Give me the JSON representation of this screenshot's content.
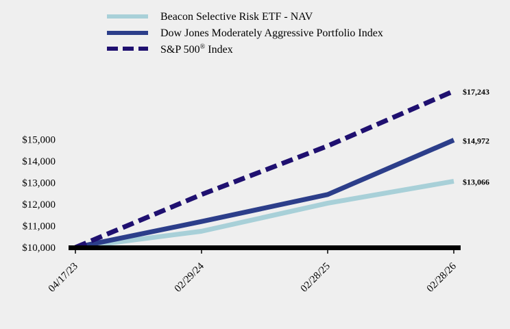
{
  "chart_data": {
    "type": "line",
    "title": "",
    "xlabel": "",
    "ylabel": "",
    "x": [
      "04/17/23",
      "02/29/24",
      "02/28/25",
      "02/28/26"
    ],
    "ylim": [
      10000,
      15000
    ],
    "yticks": [
      10000,
      11000,
      12000,
      13000,
      14000,
      15000
    ],
    "ytick_labels": [
      "$10,000",
      "$11,000",
      "$12,000",
      "$13,000",
      "$14,000",
      "$15,000"
    ],
    "legend_position": "top",
    "series": [
      {
        "name": "Beacon Selective Risk ETF - NAV",
        "values": [
          10000,
          10750,
          12050,
          13066
        ],
        "color": "#a8d0d8",
        "style": "solid",
        "end_label": "$13,066"
      },
      {
        "name": "Dow Jones Moderately Aggressive Portfolio Index",
        "values": [
          10000,
          11200,
          12450,
          14972
        ],
        "color": "#2c3e8a",
        "style": "solid",
        "end_label": "$14,972"
      },
      {
        "name": "S&P 500",
        "name_superscript": "®",
        "name_suffix": " Index",
        "values": [
          10000,
          12450,
          14700,
          17243
        ],
        "color": "#1f1070",
        "style": "dashed",
        "end_label": "$17,243"
      }
    ],
    "grid": false,
    "axis_color": "#000000"
  }
}
